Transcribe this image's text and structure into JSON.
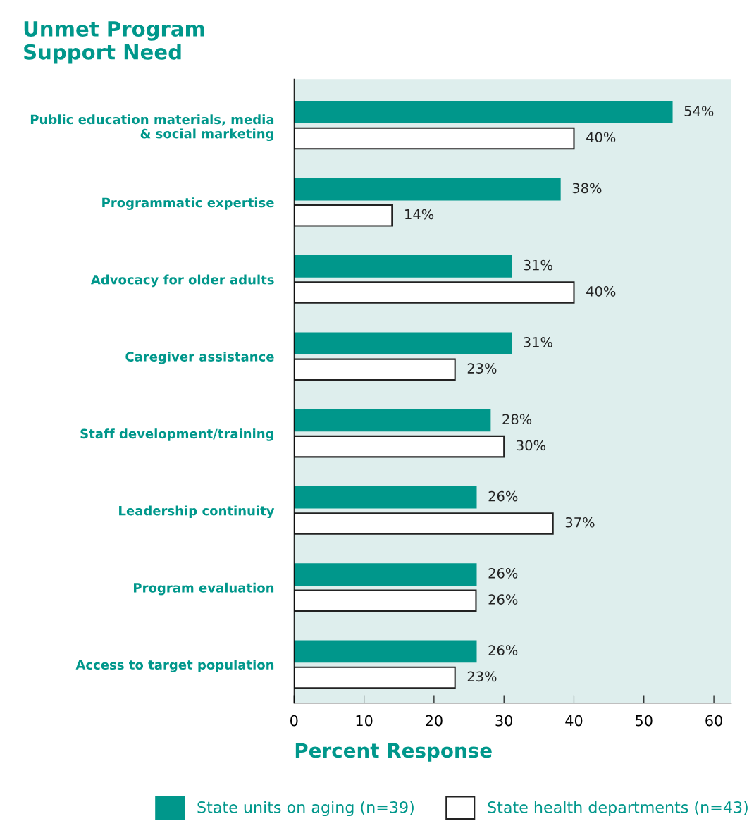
{
  "chart_data": {
    "type": "bar",
    "orientation": "horizontal",
    "title": "Unmet Program\nSupport Need",
    "xlabel": "Percent Response",
    "categories": [
      "Public education materials, media\n& social marketing",
      "Programmatic expertise",
      "Advocacy for older adults",
      "Caregiver assistance",
      "Staff development/training",
      "Leadership continuity",
      "Program evaluation",
      "Access to target population"
    ],
    "series": [
      {
        "name": "State units on aging (n=39)",
        "color": "#00978b",
        "values": [
          54,
          38,
          31,
          31,
          28,
          26,
          26,
          26
        ],
        "value_labels": [
          "54%",
          "38%",
          "31%",
          "31%",
          "28%",
          "26%",
          "26%",
          "26%"
        ]
      },
      {
        "name": "State health departments (n=43)",
        "color": "#ffffff",
        "values": [
          40,
          14,
          40,
          23,
          30,
          37,
          26,
          23
        ],
        "value_labels": [
          "40%",
          "14%",
          "40%",
          "23%",
          "30%",
          "37%",
          "26%",
          "23%"
        ]
      }
    ],
    "xlim": [
      0,
      62.5
    ],
    "xticks": [
      0,
      10,
      20,
      30,
      40,
      50,
      60
    ],
    "grid": false,
    "legend": "bottom"
  }
}
